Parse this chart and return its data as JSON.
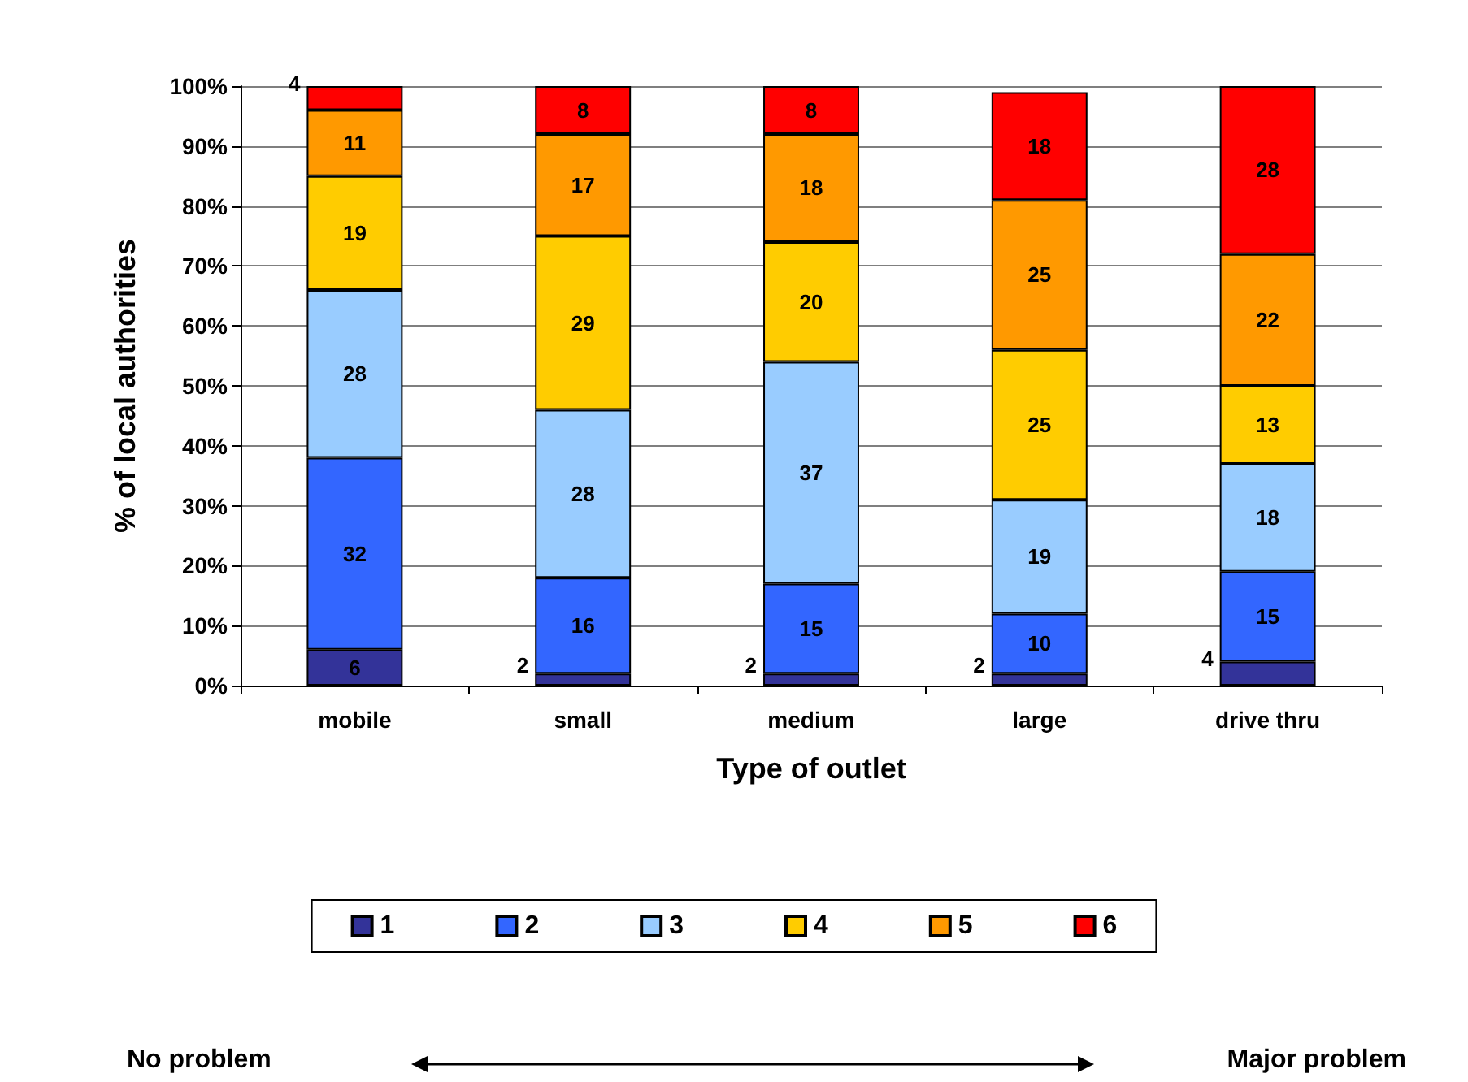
{
  "chart_data": {
    "type": "bar",
    "xlabel": "Type of outlet",
    "ylabel": "% of local authorities",
    "categories": [
      "mobile",
      "small",
      "medium",
      "large",
      "drive thru"
    ],
    "series": [
      {
        "name": "1",
        "color": "#333399",
        "values": [
          6,
          2,
          2,
          2,
          4
        ]
      },
      {
        "name": "2",
        "color": "#3366ff",
        "values": [
          32,
          16,
          15,
          10,
          15
        ]
      },
      {
        "name": "3",
        "color": "#99ccff",
        "values": [
          28,
          28,
          37,
          19,
          18
        ]
      },
      {
        "name": "4",
        "color": "#ffcc00",
        "values": [
          19,
          29,
          20,
          25,
          13
        ]
      },
      {
        "name": "5",
        "color": "#ff9900",
        "values": [
          11,
          17,
          18,
          25,
          22
        ]
      },
      {
        "name": "6",
        "color": "#ff0000",
        "values": [
          4,
          8,
          8,
          18,
          28
        ]
      }
    ],
    "stacked": true,
    "data_labels": true,
    "ylim": [
      0,
      100
    ],
    "yticks": [
      {
        "value": 0,
        "label": "0%"
      },
      {
        "value": 10,
        "label": "10%"
      },
      {
        "value": 20,
        "label": "20%"
      },
      {
        "value": 30,
        "label": "30%"
      },
      {
        "value": 40,
        "label": "40%"
      },
      {
        "value": 50,
        "label": "50%"
      },
      {
        "value": 60,
        "label": "60%"
      },
      {
        "value": 70,
        "label": "70%"
      },
      {
        "value": 80,
        "label": "80%"
      },
      {
        "value": 90,
        "label": "90%"
      },
      {
        "value": 100,
        "label": "100%"
      }
    ],
    "grid": "y",
    "legend": "bottom",
    "annotations": [
      "No problem",
      "Major problem"
    ]
  }
}
